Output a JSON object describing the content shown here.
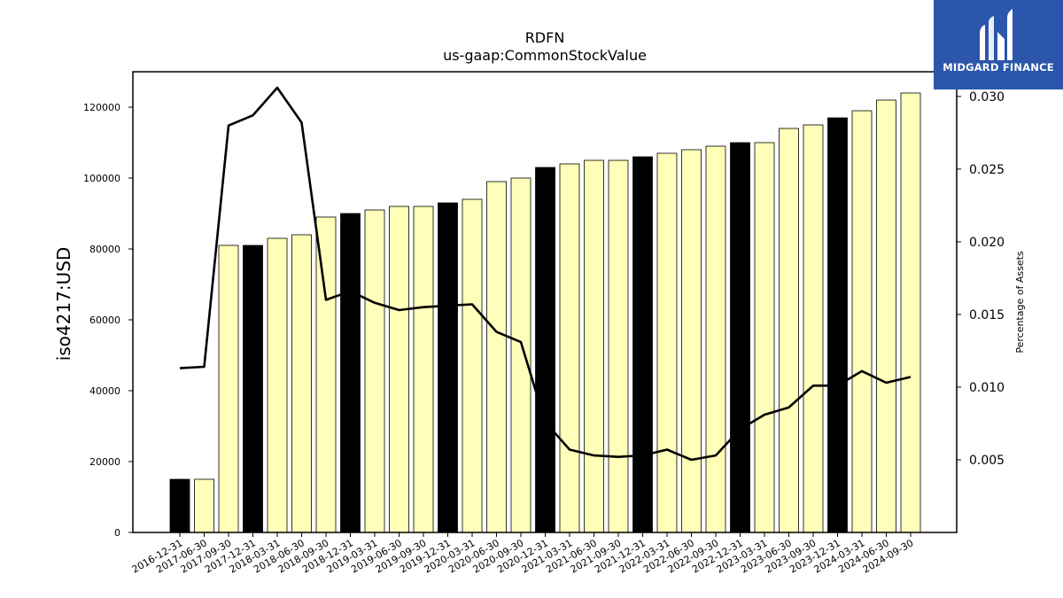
{
  "chart_data": {
    "type": "bar",
    "title": "RDFN",
    "subtitle": "us-gaap:CommonStockValue",
    "ylabel": "iso4217:USD",
    "y2label": "Percentage of Assets",
    "ylim": [
      0,
      130000
    ],
    "y2lim": [
      0,
      0.0317
    ],
    "yticks": [
      0,
      20000,
      40000,
      60000,
      80000,
      100000,
      120000
    ],
    "y2ticks": [
      0.005,
      0.01,
      0.015,
      0.02,
      0.025,
      0.03
    ],
    "y2tick_labels": [
      "0.005",
      "0.010",
      "0.015",
      "0.020",
      "0.025",
      "0.030"
    ],
    "categories": [
      "2016-12-31",
      "2017-06-30",
      "2017-09-30",
      "2017-12-31",
      "2018-03-31",
      "2018-06-30",
      "2018-09-30",
      "2018-12-31",
      "2019-03-31",
      "2019-06-30",
      "2019-09-30",
      "2019-12-31",
      "2020-03-31",
      "2020-06-30",
      "2020-09-30",
      "2020-12-31",
      "2021-03-31",
      "2021-06-30",
      "2021-09-30",
      "2021-12-31",
      "2022-03-31",
      "2022-06-30",
      "2022-09-30",
      "2022-12-31",
      "2023-03-31",
      "2023-06-30",
      "2023-09-30",
      "2023-12-31",
      "2024-03-31",
      "2024-06-30",
      "2024-09-30"
    ],
    "series": [
      {
        "type": "bar",
        "values": [
          15000,
          15000,
          81000,
          81000,
          83000,
          84000,
          89000,
          90000,
          91000,
          92000,
          92000,
          93000,
          94000,
          99000,
          100000,
          103000,
          104000,
          105000,
          105000,
          106000,
          107000,
          108000,
          109000,
          110000,
          110000,
          114000,
          115000,
          117000,
          119000,
          122000,
          124000
        ]
      },
      {
        "type": "line",
        "axis": "right",
        "values": [
          0.0113,
          0.0114,
          0.028,
          0.0287,
          0.0306,
          0.0282,
          0.016,
          0.0166,
          0.0158,
          0.0153,
          0.0155,
          0.0156,
          0.0157,
          0.0138,
          0.0131,
          0.0076,
          0.0057,
          0.0053,
          0.0052,
          0.0053,
          0.0057,
          0.005,
          0.0053,
          0.0071,
          0.0081,
          0.0086,
          0.0101,
          0.0101,
          0.0111,
          0.0103,
          0.0107
        ]
      }
    ],
    "highlighted_categories": [
      "2016-12-31",
      "2017-12-31",
      "2018-12-31",
      "2019-12-31",
      "2020-12-31",
      "2021-12-31",
      "2022-12-31",
      "2023-12-31"
    ],
    "colors": {
      "bar": "#ffffb9",
      "bar_highlight": "#000000",
      "line": "#000000"
    }
  },
  "logo": {
    "text": "MIDGARD FINANCE"
  }
}
